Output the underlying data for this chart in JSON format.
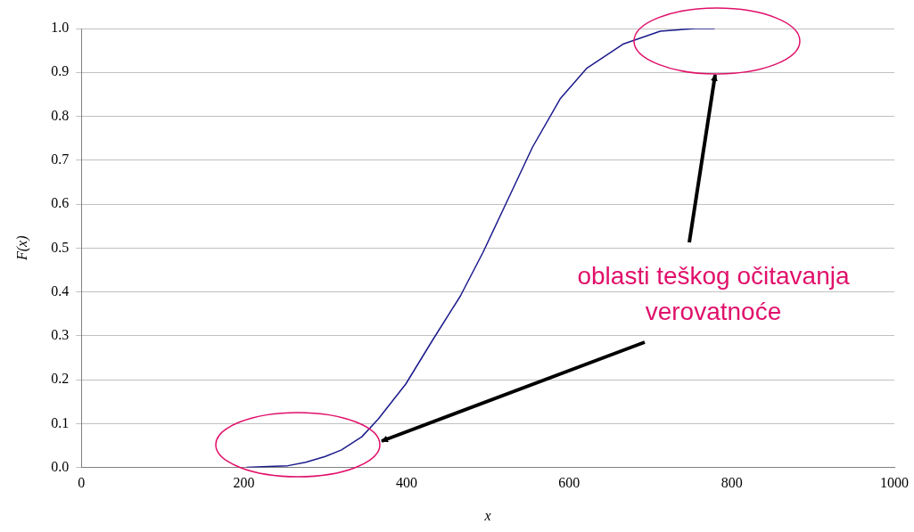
{
  "chart_data": {
    "type": "line",
    "xlabel": "x",
    "ylabel": "F(x)",
    "x": [
      203,
      230,
      254,
      276,
      300,
      320,
      345,
      365,
      399,
      432,
      466,
      494,
      522,
      555,
      589,
      622,
      667,
      712,
      756,
      779
    ],
    "series": [
      {
        "color": "#1a1a8c",
        "values": [
          0,
          0.002,
          0.004,
          0.012,
          0.025,
          0.04,
          0.07,
          0.11,
          0.19,
          0.29,
          0.39,
          0.49,
          0.6,
          0.73,
          0.84,
          0.91,
          0.965,
          0.994,
          1.0,
          1.0
        ]
      }
    ],
    "xlim": [
      0,
      1000
    ],
    "xticks": [
      0,
      200,
      400,
      600,
      800,
      1000
    ],
    "ylim": [
      0,
      1
    ],
    "yticks": [
      {
        "value": 0,
        "label": "0.0"
      },
      0.1,
      0.2,
      0.3,
      0.4,
      0.5,
      0.6,
      0.7,
      0.8,
      0.9,
      {
        "value": 1,
        "label": "1.0"
      }
    ],
    "grid": "y",
    "legend": false,
    "marker": "none",
    "line_style": "solid",
    "annotations": [
      "oblasti teškog očitavanja verovatnoće"
    ]
  }
}
